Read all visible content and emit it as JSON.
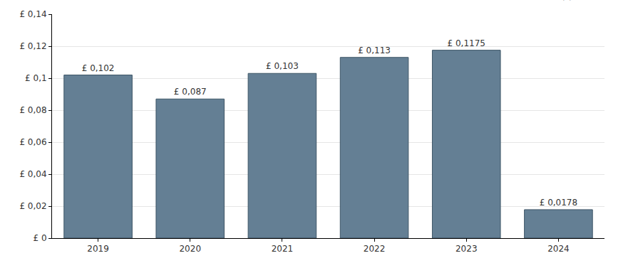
{
  "chart_data": {
    "type": "bar",
    "annotations": [
      "(c) Trivano.com"
    ],
    "categories": [
      "2019",
      "2020",
      "2021",
      "2022",
      "2023",
      "2024"
    ],
    "values": [
      0.102,
      0.087,
      0.103,
      0.113,
      0.1175,
      0.0178
    ],
    "value_labels": [
      "£ 0,102",
      "£ 0,087",
      "£ 0,103",
      "£ 0,113",
      "£ 0,1175",
      "£ 0,0178"
    ],
    "data_labels": true,
    "color": "#647f94",
    "ylim": [
      0,
      0.14
    ],
    "yticks": [
      {
        "value": 0,
        "label": "£ 0"
      },
      {
        "value": 0.02,
        "label": "£ 0,02"
      },
      {
        "value": 0.04,
        "label": "£ 0,04"
      },
      {
        "value": 0.06,
        "label": "£ 0,06"
      },
      {
        "value": 0.08,
        "label": "£ 0,08"
      },
      {
        "value": 0.1,
        "label": "£ 0,1"
      },
      {
        "value": 0.12,
        "label": "£ 0,12"
      },
      {
        "value": 0.14,
        "label": "£ 0,14"
      }
    ],
    "grid": true
  }
}
